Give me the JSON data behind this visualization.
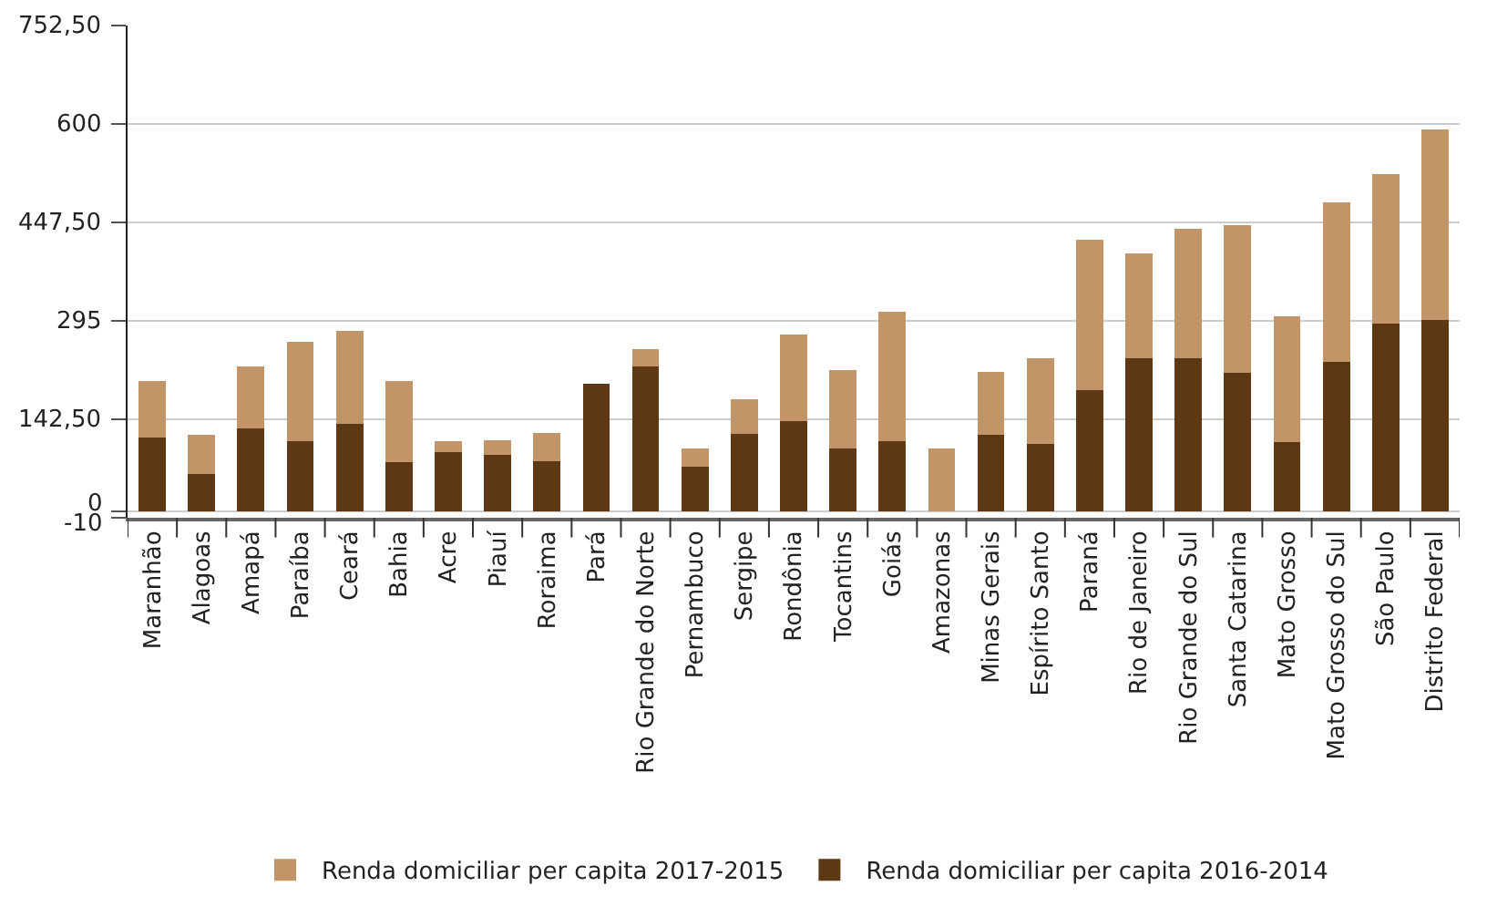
{
  "chart_data": {
    "type": "bar",
    "stacked": true,
    "categories": [
      "Maranhão",
      "Alagoas",
      "Amapá",
      "Paraíba",
      "Ceará",
      "Bahia",
      "Acre",
      "Piauí",
      "Roraima",
      "Pará",
      "Rio Grande do Norte",
      "Pernambuco",
      "Sergipe",
      "Rondônia",
      "Tocantins",
      "Goiás",
      "Amazonas",
      "Minas Gerais",
      "Espírito Santo",
      "Paraná",
      "Rio de Janeiro",
      "Rio Grande do Sul",
      "Santa Catarina",
      "Mato Grosso",
      "Mato Grosso do Sul",
      "São Paulo",
      "Distrito Federal"
    ],
    "series": [
      {
        "name": "Renda domiciliar per capita 2016-2014",
        "color": "#5e3714",
        "values": [
          114,
          58,
          128,
          108,
          135,
          76,
          92,
          88,
          77,
          198,
          224,
          69,
          120,
          140,
          98,
          109,
          0,
          118,
          104,
          188,
          237,
          237,
          214,
          107,
          231,
          291,
          296
        ]
      },
      {
        "name": "Renda domiciliar per capita 2017-2015",
        "color": "#c19568",
        "values": [
          88,
          60,
          96,
          155,
          145,
          126,
          16,
          22,
          45,
          0,
          27,
          28,
          53,
          134,
          121,
          200,
          97,
          98,
          133,
          232,
          162,
          201,
          229,
          195,
          247,
          232,
          295
        ]
      }
    ],
    "ylim": [
      -10,
      752.5
    ],
    "yticks": [
      -10,
      0,
      {
        "value": 142.5,
        "label": "142,50"
      },
      295,
      {
        "value": 447.5,
        "label": "447,50"
      },
      600,
      {
        "value": 752.5,
        "label": "752,50"
      }
    ],
    "grid": "y",
    "legend": "bottom"
  }
}
